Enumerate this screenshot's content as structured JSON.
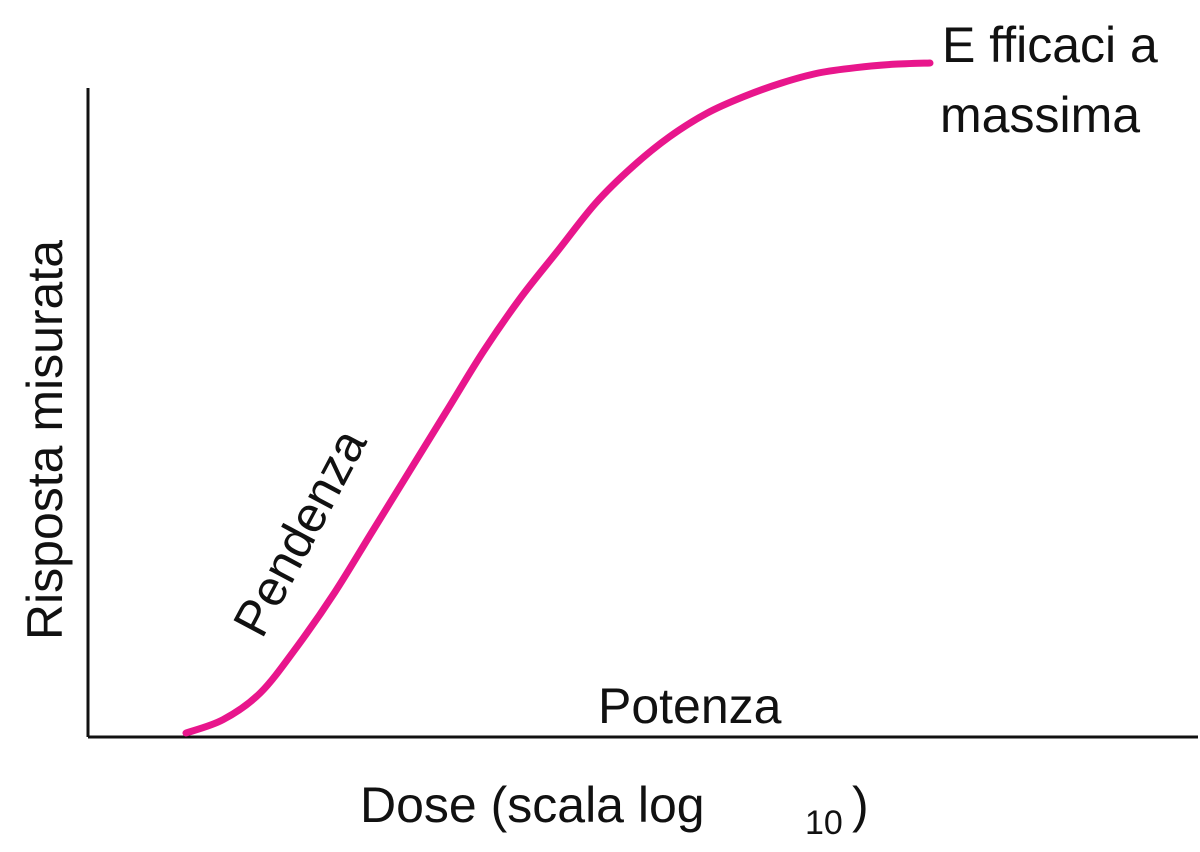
{
  "chart_data": {
    "type": "line",
    "xlabel": "Dose (scala log",
    "xlabel_subscript": "10",
    "xlabel_close": ")",
    "ylabel": "Risposta misurata",
    "grid": false,
    "series": [
      {
        "color": "#E8168C",
        "x": [
          0.0,
          0.05,
          0.1,
          0.15,
          0.2,
          0.25,
          0.3,
          0.35,
          0.4,
          0.45,
          0.5,
          0.55,
          0.6,
          0.65,
          0.7,
          0.75,
          0.8,
          0.85,
          0.9,
          0.95,
          1.0
        ],
        "values": [
          0.0,
          0.02,
          0.06,
          0.13,
          0.21,
          0.3,
          0.39,
          0.48,
          0.57,
          0.65,
          0.72,
          0.79,
          0.845,
          0.89,
          0.925,
          0.95,
          0.97,
          0.985,
          0.993,
          0.998,
          1.0
        ]
      }
    ],
    "annotations": {
      "max_line1": "E fficaci a",
      "max_line2": "massima",
      "slope": "Pendenza",
      "potency": "Potenza"
    }
  }
}
